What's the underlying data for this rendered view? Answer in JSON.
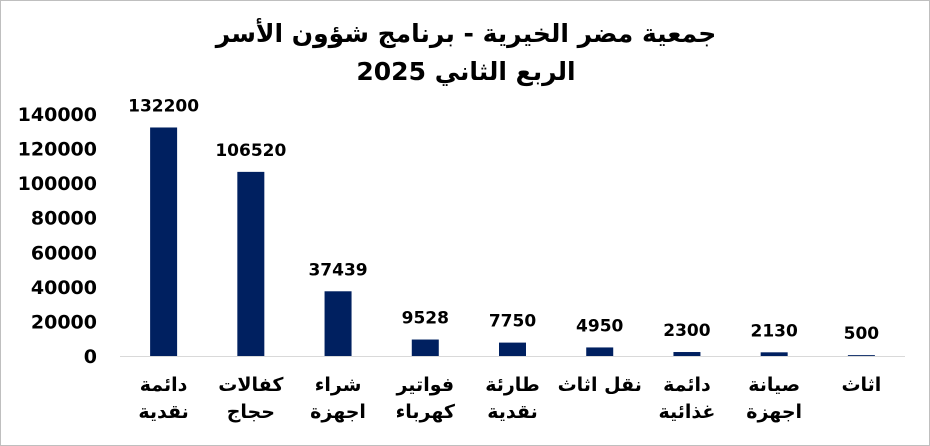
{
  "chart_data": {
    "type": "bar",
    "title": "جمعية مضر الخيرية - برنامج شؤون الأسر",
    "subtitle": "الربع الثاني 2025",
    "categories": [
      [
        "دائمة",
        "نقدية"
      ],
      [
        "كفالات",
        "حجاج"
      ],
      [
        "شراء",
        "اجهزة"
      ],
      [
        "فواتير",
        "كهرباء"
      ],
      [
        "طارئة",
        "نقدية"
      ],
      [
        "نقل اثاث"
      ],
      [
        "دائمة",
        "غذائية"
      ],
      [
        "صيانة",
        "اجهزة"
      ],
      [
        "اثاث"
      ]
    ],
    "values": [
      132200,
      106520,
      37439,
      9528,
      7750,
      4950,
      2300,
      2130,
      500
    ],
    "value_labels": [
      "132200",
      "106520",
      "37439",
      "9528",
      "7750",
      "4950",
      "2300",
      "2130",
      "500"
    ],
    "yticks": [
      "0",
      "20000",
      "40000",
      "60000",
      "80000",
      "100000",
      "120000",
      "140000"
    ],
    "ylim": [
      0,
      140000
    ],
    "bar_color": "#002060",
    "grid": false,
    "legend": "none",
    "xlabel": "",
    "ylabel": ""
  }
}
